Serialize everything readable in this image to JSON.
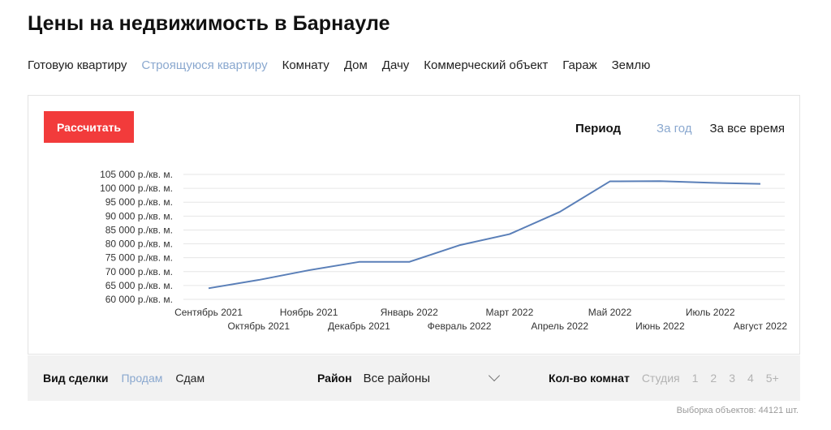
{
  "page": {
    "title": "Цены на недвижимость в Барнауле"
  },
  "type_tabs": [
    {
      "label": "Готовую квартиру",
      "active": false
    },
    {
      "label": "Строящуюся квартиру",
      "active": true
    },
    {
      "label": "Комнату",
      "active": false
    },
    {
      "label": "Дом",
      "active": false
    },
    {
      "label": "Дачу",
      "active": false
    },
    {
      "label": "Коммерческий объект",
      "active": false
    },
    {
      "label": "Гараж",
      "active": false
    },
    {
      "label": "Землю",
      "active": false
    }
  ],
  "controls": {
    "calculate_label": "Рассчитать",
    "period_label": "Период",
    "period_options": [
      "За год",
      "За все время"
    ],
    "period_active": "За год"
  },
  "colors": {
    "accent": "#f23b3b",
    "line": "#5a7fb8",
    "active_link": "#8aa8cf",
    "grid": "#e6e6e6"
  },
  "chart_data": {
    "type": "line",
    "categories": [
      "Сентябрь 2021",
      "Октябрь 2021",
      "Ноябрь 2021",
      "Декабрь 2021",
      "Январь 2022",
      "Февраль 2022",
      "Март 2022",
      "Апрель 2022",
      "Май 2022",
      "Июнь 2022",
      "Июль 2022",
      "Август 2022"
    ],
    "values": [
      64000,
      67000,
      70500,
      73500,
      73500,
      79500,
      83500,
      91500,
      102500,
      102600,
      102000,
      101600
    ],
    "y_ticks": [
      60000,
      65000,
      70000,
      75000,
      80000,
      85000,
      90000,
      95000,
      100000,
      105000
    ],
    "y_tick_labels": [
      "60 000 р./кв. м.",
      "65 000 р./кв. м.",
      "70 000 р./кв. м.",
      "75 000 р./кв. м.",
      "80 000 р./кв. м.",
      "85 000 р./кв. м.",
      "90 000 р./кв. м.",
      "95 000 р./кв. м.",
      "100 000 р./кв. м.",
      "105 000 р./кв. м."
    ],
    "ylim": [
      60000,
      105000
    ],
    "grid": true,
    "legend": "none"
  },
  "filters": {
    "deal_label": "Вид сделки",
    "deal_options": [
      "Продам",
      "Сдам"
    ],
    "deal_active": "Продам",
    "district_label": "Район",
    "district_value": "Все районы",
    "rooms_label": "Кол-во комнат",
    "rooms_options": [
      "Студия",
      "1",
      "2",
      "3",
      "4",
      "5+"
    ]
  },
  "footer": {
    "count_text": "Выборка объектов: 44121 шт."
  }
}
